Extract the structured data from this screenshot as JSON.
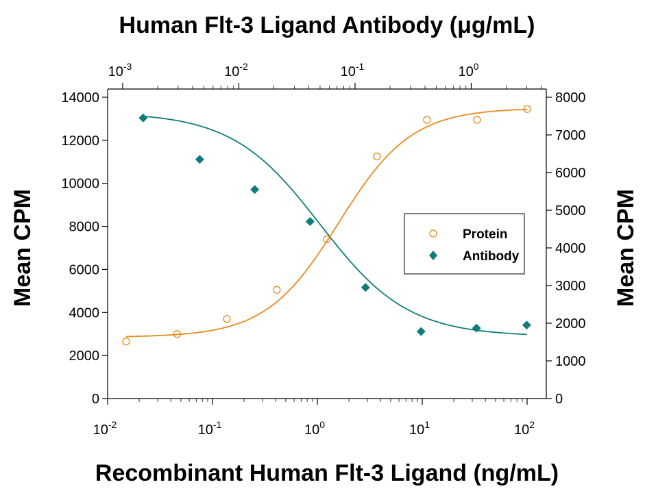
{
  "chart_data": {
    "type": "scatter",
    "title": "Human Flt-3 Ligand Antibody (μg/mL)",
    "xlabel": "Recombinant Human Flt-3 Ligand (ng/mL)",
    "ylabel_left": "Mean CPM",
    "ylabel_right": "Mean CPM",
    "x_scale": "log",
    "xlim": [
      0.01,
      150
    ],
    "x_ticks": [
      {
        "value": 0.01,
        "base": "10",
        "exp": "-2"
      },
      {
        "value": 0.1,
        "base": "10",
        "exp": "-1"
      },
      {
        "value": 1,
        "base": "10",
        "exp": "0"
      },
      {
        "value": 10,
        "base": "10",
        "exp": "1"
      },
      {
        "value": 100,
        "base": "10",
        "exp": "2"
      }
    ],
    "x_top_scale": "log",
    "x_top_lim": [
      0.001,
      3
    ],
    "x_top_ticks": [
      {
        "value": 0.001,
        "base": "10",
        "exp": "-3"
      },
      {
        "value": 0.01,
        "base": "10",
        "exp": "-2"
      },
      {
        "value": 0.1,
        "base": "10",
        "exp": "-1"
      },
      {
        "value": 1,
        "base": "10",
        "exp": "0"
      }
    ],
    "ylim_left": [
      0,
      14000
    ],
    "y_left_ticks": [
      0,
      2000,
      4000,
      6000,
      8000,
      10000,
      12000,
      14000
    ],
    "ylim_right": [
      0,
      8000
    ],
    "y_right_ticks": [
      0,
      1000,
      2000,
      3000,
      4000,
      5000,
      6000,
      7000,
      8000
    ],
    "grid": false,
    "legend_position": "right",
    "series": [
      {
        "name": "Protein",
        "axis": "bottom-left",
        "marker": "open-circle",
        "color": "#E8891C",
        "x": [
          0.015,
          0.046,
          0.137,
          0.41,
          1.23,
          3.7,
          11.1,
          33.3,
          100
        ],
        "y": [
          2650,
          3000,
          3700,
          5050,
          7400,
          11250,
          12950,
          12950,
          13450
        ],
        "fit": {
          "bottom": 2850,
          "top": 13500,
          "ec50": 1.6,
          "hill": 1.25
        }
      },
      {
        "name": "Antibody",
        "axis": "top-right",
        "marker": "filled-diamond",
        "color": "#0E7C7B",
        "x": [
          0.0015,
          0.0046,
          0.0137,
          0.041,
          0.123,
          0.37,
          1.11,
          3.0
        ],
        "y": [
          7450,
          6350,
          5550,
          4700,
          2950,
          1780,
          1870,
          1950
        ],
        "fit": {
          "bottom": 1650,
          "top": 7600,
          "ec50": 0.05,
          "hill": 1.15
        }
      }
    ]
  }
}
